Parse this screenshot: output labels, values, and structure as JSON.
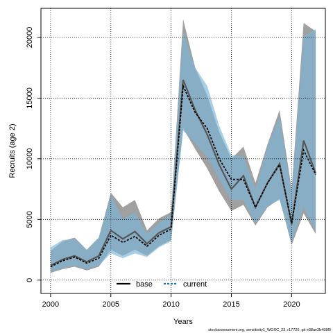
{
  "chart_data": {
    "type": "line",
    "xlabel": "Years",
    "ylabel": "Recruits (age 2)",
    "xlim": [
      1999.2,
      2022.8
    ],
    "ylim": [
      -1100,
      22400
    ],
    "x_ticks": [
      2000,
      2005,
      2010,
      2015,
      2020
    ],
    "y_ticks": [
      0,
      5000,
      10000,
      15000,
      20000
    ],
    "grid": true,
    "legend_position": "bottom-center",
    "x": [
      2000,
      2001,
      2002,
      2003,
      2004,
      2005,
      2006,
      2007,
      2008,
      2009,
      2010,
      2011,
      2012,
      2013,
      2014,
      2015,
      2016,
      2017,
      2018,
      2019,
      2020,
      2021,
      2022
    ],
    "series": [
      {
        "name": "base",
        "color": "#000000",
        "band_color": "#808080",
        "linestyle": "solid",
        "values": [
          1200,
          1700,
          2000,
          1500,
          2000,
          4100,
          3400,
          4000,
          3000,
          3900,
          4400,
          16500,
          14000,
          12000,
          9500,
          7500,
          8600,
          6000,
          8000,
          9600,
          4600,
          11500,
          8800
        ],
        "lower": [
          600,
          900,
          1100,
          800,
          1100,
          2500,
          2000,
          2500,
          2000,
          2800,
          3300,
          12500,
          10800,
          9200,
          7300,
          5700,
          6200,
          4500,
          6000,
          6700,
          2900,
          5500,
          3800
        ],
        "upper": [
          2400,
          3200,
          3500,
          2500,
          3500,
          7200,
          6000,
          6600,
          4100,
          5100,
          5600,
          21500,
          17500,
          15200,
          12200,
          10000,
          11000,
          8000,
          11200,
          14000,
          7500,
          21200,
          20500
        ]
      },
      {
        "name": "current",
        "color": "#1f6fa8",
        "band_color": "#7ab6d8",
        "linestyle": "dashed",
        "values": [
          1100,
          1600,
          1900,
          1400,
          1800,
          3700,
          3100,
          3600,
          2800,
          3700,
          4200,
          16000,
          13800,
          12500,
          10000,
          8300,
          8300,
          6000,
          8000,
          9500,
          4700,
          10700,
          8700
        ],
        "lower": [
          700,
          1000,
          1200,
          900,
          1200,
          2200,
          1800,
          2200,
          1900,
          2700,
          3200,
          12300,
          11300,
          10100,
          8300,
          6600,
          6600,
          4700,
          6100,
          6600,
          3100,
          6000,
          4000
        ],
        "upper": [
          2700,
          3300,
          3400,
          2500,
          3500,
          7000,
          5000,
          5600,
          3800,
          4700,
          5400,
          20500,
          17500,
          16000,
          12700,
          10300,
          10200,
          7500,
          11000,
          13500,
          7200,
          20100,
          20700
        ]
      }
    ]
  },
  "footnote": "stockassessment.org, sensitivity1_WOSC_23, r17720, git e38ae2b498f0"
}
